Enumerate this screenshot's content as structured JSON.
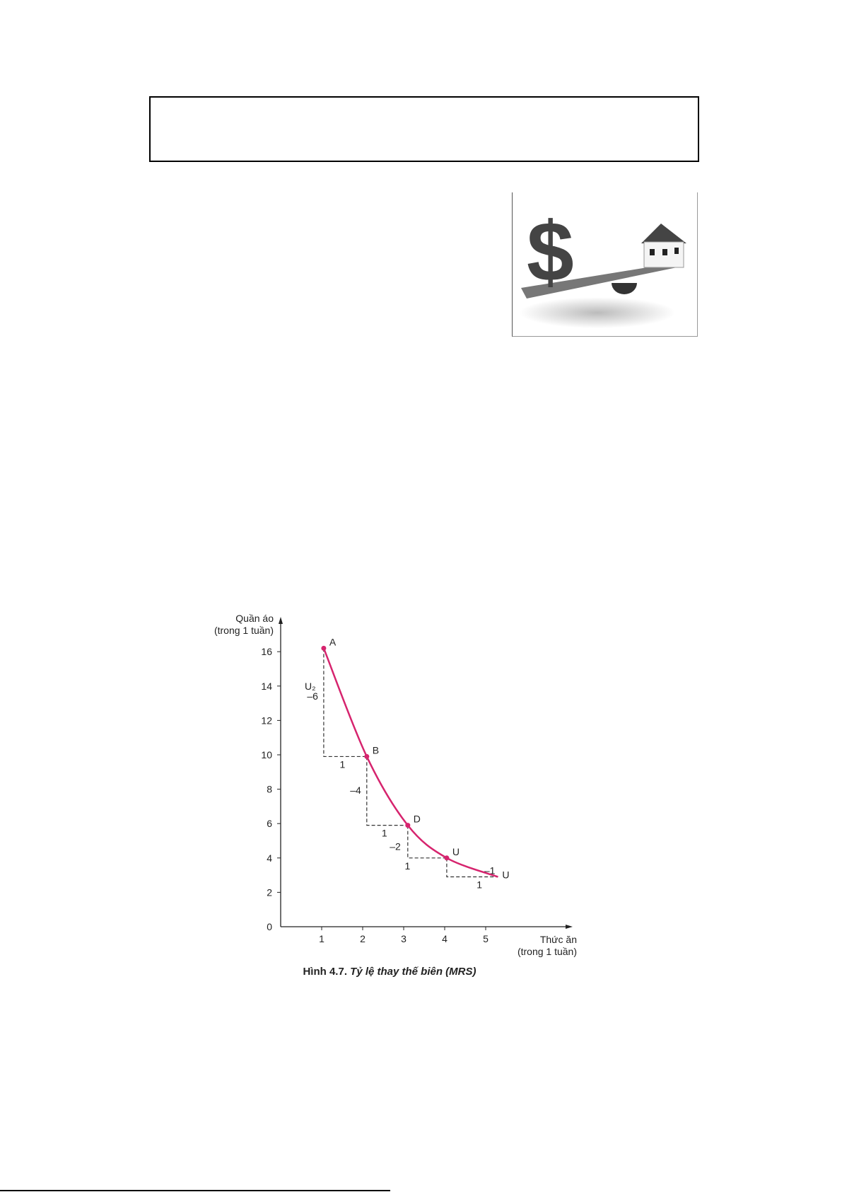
{
  "figure_image": {
    "icon": "dollar-house-seesaw-image"
  },
  "caption": {
    "number": "Hình 4.7.",
    "title": "Tỷ lệ thay thế biên (MRS)"
  },
  "chart_data": {
    "type": "line",
    "xlabel": [
      "Thức ăn",
      "(trong 1 tuần)"
    ],
    "ylabel": [
      "Quần áo",
      "(trong 1 tuần)"
    ],
    "xlim": [
      0,
      5.9
    ],
    "ylim": [
      0,
      17.5
    ],
    "xticks": [
      1,
      2,
      3,
      4,
      5
    ],
    "yticks": [
      0,
      2,
      4,
      6,
      8,
      10,
      12,
      14,
      16
    ],
    "grid": false,
    "curve_color": "#d6246e",
    "series": [
      {
        "name": "U₂",
        "points": [
          [
            1.05,
            16.2
          ],
          [
            2.1,
            9.9
          ],
          [
            3.1,
            5.9
          ],
          [
            4.05,
            4.0
          ],
          [
            5.3,
            2.9
          ]
        ]
      }
    ],
    "point_labels": [
      {
        "label": "A",
        "x": 1.05,
        "y": 16.2
      },
      {
        "label": "B",
        "x": 2.1,
        "y": 9.9
      },
      {
        "label": "D",
        "x": 3.1,
        "y": 5.9
      },
      {
        "label": "U",
        "x": 4.05,
        "y": 4.0
      },
      {
        "label": "U",
        "x": 5.3,
        "y": 2.9,
        "marker": false
      }
    ],
    "steps": [
      {
        "dy_label": "–6",
        "dx_label": "1"
      },
      {
        "dy_label": "–4",
        "dx_label": "1"
      },
      {
        "dy_label": "–2",
        "dx_label": "1"
      },
      {
        "dy_label": "–1",
        "dx_label": "1"
      }
    ],
    "curve_label": "U₂"
  }
}
